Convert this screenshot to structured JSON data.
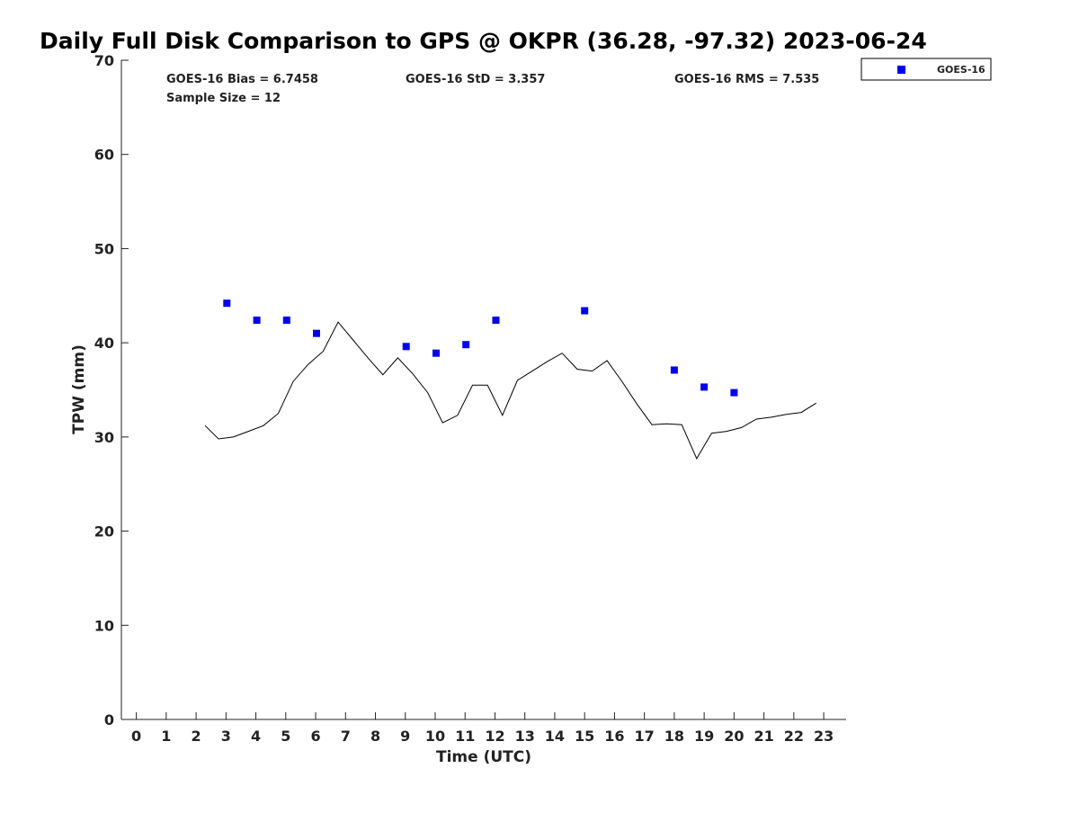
{
  "chart_data": {
    "type": "scatter",
    "title": "Daily Full Disk Comparison to GPS @ OKPR (36.28, -97.32) 2023-06-24",
    "xlabel": "Time (UTC)",
    "ylabel": "TPW (mm)",
    "xlim": [
      -0.5,
      23.75
    ],
    "ylim": [
      0,
      70
    ],
    "xticks": [
      0,
      1,
      2,
      3,
      4,
      5,
      6,
      7,
      8,
      9,
      10,
      11,
      12,
      13,
      14,
      15,
      16,
      17,
      18,
      19,
      20,
      21,
      22,
      23
    ],
    "yticks": [
      0,
      10,
      20,
      30,
      40,
      50,
      60,
      70
    ],
    "grid": false,
    "legend_position": "top-right",
    "stats": {
      "bias": "GOES-16 Bias = 6.7458",
      "std": "GOES-16 StD = 3.357",
      "rms": "GOES-16 RMS = 7.535",
      "sample_size": "Sample Size = 12"
    },
    "series": [
      {
        "name": "GOES-16",
        "kind": "scatter",
        "marker": "square",
        "color": "#0000ee",
        "x": [
          3.03,
          4.03,
          5.03,
          6.03,
          9.03,
          10.03,
          11.03,
          12.03,
          15.0,
          18.0,
          19.0,
          20.0
        ],
        "y": [
          44.2,
          42.4,
          42.4,
          41.0,
          39.6,
          38.9,
          39.8,
          42.4,
          43.4,
          37.1,
          35.3,
          34.7
        ]
      },
      {
        "kind": "line",
        "color": "#000000",
        "x": [
          2.3,
          2.75,
          3.25,
          3.75,
          4.25,
          4.75,
          5.25,
          5.75,
          6.25,
          6.75,
          7.25,
          7.75,
          8.25,
          8.75,
          9.25,
          9.75,
          10.25,
          10.75,
          11.25,
          11.75,
          12.25,
          12.75,
          13.25,
          13.75,
          14.25,
          14.75,
          15.25,
          15.75,
          16.25,
          16.75,
          17.25,
          17.75,
          18.25,
          18.75,
          19.25,
          19.75,
          20.25,
          20.75,
          21.25,
          21.75,
          22.25,
          22.75
        ],
        "y": [
          31.2,
          29.8,
          30.0,
          30.6,
          31.2,
          32.5,
          35.9,
          37.7,
          39.1,
          42.2,
          40.3,
          38.4,
          36.6,
          38.4,
          36.7,
          34.7,
          31.5,
          32.3,
          35.5,
          35.5,
          32.3,
          36.0,
          37.0,
          38.0,
          38.9,
          37.2,
          37.0,
          38.1,
          35.9,
          33.5,
          31.3,
          31.4,
          31.3,
          27.7,
          30.4,
          30.6,
          31.0,
          31.9,
          32.1,
          32.4,
          32.6,
          33.6
        ]
      }
    ]
  }
}
